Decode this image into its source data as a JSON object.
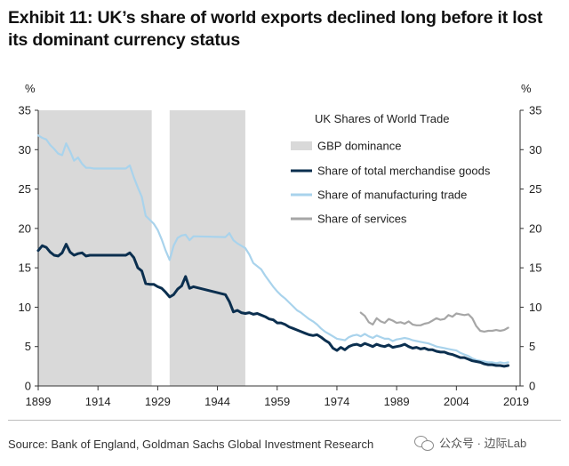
{
  "title": "Exhibit 11: UK’s share of world exports declined long before it lost its dominant currency status",
  "source": "Source: Bank of England, Goldman Sachs Global Investment Research",
  "watermark": "公众号 · 边际Lab",
  "watermark_icon": "wechat-icon",
  "chart_data": {
    "type": "line",
    "legend_title": "UK Shares of World Trade",
    "legend_placement": "top-right",
    "y_unit_left": "%",
    "y_unit_right": "%",
    "xlim": [
      1899,
      2020
    ],
    "ylim": [
      0,
      35
    ],
    "x_ticks": [
      "1899",
      "1914",
      "1929",
      "1944",
      "1959",
      "1974",
      "1989",
      "2004",
      "2019"
    ],
    "y_ticks": [
      "0",
      "5",
      "10",
      "15",
      "20",
      "25",
      "30",
      "35"
    ],
    "grid": false,
    "shaded_periods": {
      "name": "GBP dominance",
      "color": "#d9d9d9",
      "ranges": [
        [
          1899,
          1927.5
        ],
        [
          1932,
          1951
        ]
      ]
    },
    "series": [
      {
        "name": "Share of total merchandise goods",
        "color": "#0b2f4f",
        "width": 3,
        "x": [
          1899,
          1900,
          1901,
          1902,
          1903,
          1904,
          1905,
          1906,
          1907,
          1908,
          1909,
          1910,
          1911,
          1912,
          1913,
          1921,
          1922,
          1923,
          1924,
          1925,
          1926,
          1927,
          1928,
          1929,
          1930,
          1931,
          1932,
          1933,
          1934,
          1935,
          1936,
          1937,
          1938,
          1946,
          1947,
          1948,
          1949,
          1950,
          1951,
          1952,
          1953,
          1954,
          1955,
          1956,
          1957,
          1958,
          1959,
          1960,
          1961,
          1962,
          1963,
          1964,
          1965,
          1966,
          1967,
          1968,
          1969,
          1970,
          1971,
          1972,
          1973,
          1974,
          1975,
          1976,
          1977,
          1978,
          1979,
          1980,
          1981,
          1982,
          1983,
          1984,
          1985,
          1986,
          1987,
          1988,
          1989,
          1990,
          1991,
          1992,
          1993,
          1994,
          1995,
          1996,
          1997,
          1998,
          1999,
          2000,
          2001,
          2002,
          2003,
          2004,
          2005,
          2006,
          2007,
          2008,
          2009,
          2010,
          2011,
          2012,
          2013,
          2014,
          2015,
          2016,
          2017
        ],
        "y": [
          17.2,
          17.8,
          17.6,
          17.0,
          16.6,
          16.5,
          16.9,
          18.0,
          17.0,
          16.6,
          16.8,
          16.9,
          16.5,
          16.6,
          16.6,
          16.6,
          16.9,
          16.3,
          15.0,
          14.6,
          13.0,
          12.9,
          12.9,
          12.6,
          12.4,
          11.9,
          11.3,
          11.6,
          12.3,
          12.7,
          13.9,
          12.4,
          12.6,
          11.6,
          10.7,
          9.4,
          9.6,
          9.3,
          9.2,
          9.3,
          9.1,
          9.2,
          9.0,
          8.8,
          8.5,
          8.4,
          8.0,
          8.0,
          7.8,
          7.5,
          7.3,
          7.1,
          6.9,
          6.7,
          6.5,
          6.4,
          6.5,
          6.2,
          5.8,
          5.5,
          4.8,
          4.5,
          4.9,
          4.6,
          5.0,
          5.2,
          5.3,
          5.1,
          5.4,
          5.2,
          5.0,
          5.3,
          5.1,
          5.0,
          5.2,
          4.9,
          5.0,
          5.1,
          5.3,
          5.0,
          4.8,
          4.9,
          4.7,
          4.8,
          4.6,
          4.6,
          4.4,
          4.3,
          4.3,
          4.1,
          4.0,
          3.8,
          3.6,
          3.6,
          3.4,
          3.2,
          3.1,
          3.0,
          2.8,
          2.7,
          2.7,
          2.6,
          2.6,
          2.5,
          2.6
        ]
      },
      {
        "name": "Share of manufacturing trade",
        "color": "#a9d3ec",
        "width": 2.2,
        "x": [
          1899,
          1900,
          1901,
          1902,
          1903,
          1904,
          1905,
          1906,
          1907,
          1908,
          1909,
          1910,
          1911,
          1912,
          1913,
          1921,
          1922,
          1923,
          1924,
          1925,
          1926,
          1927,
          1928,
          1929,
          1930,
          1931,
          1932,
          1933,
          1934,
          1935,
          1936,
          1937,
          1938,
          1946,
          1947,
          1948,
          1949,
          1950,
          1951,
          1952,
          1953,
          1954,
          1955,
          1956,
          1957,
          1958,
          1959,
          1960,
          1961,
          1962,
          1963,
          1964,
          1965,
          1966,
          1967,
          1968,
          1969,
          1970,
          1971,
          1972,
          1973,
          1974,
          1975,
          1976,
          1977,
          1978,
          1979,
          1980,
          1981,
          1982,
          1983,
          1984,
          1985,
          1986,
          1987,
          1988,
          1989,
          1990,
          1991,
          1992,
          1993,
          1994,
          1995,
          1996,
          1997,
          1998,
          1999,
          2000,
          2001,
          2002,
          2003,
          2004,
          2005,
          2006,
          2007,
          2008,
          2009,
          2010,
          2011,
          2012,
          2013,
          2014,
          2015,
          2016,
          2017
        ],
        "y": [
          31.8,
          31.5,
          31.3,
          30.6,
          30.1,
          29.5,
          29.3,
          30.8,
          29.8,
          28.6,
          29.0,
          28.2,
          27.7,
          27.7,
          27.6,
          27.6,
          28.0,
          26.5,
          25.2,
          24.0,
          21.6,
          21.1,
          20.6,
          19.8,
          18.6,
          17.2,
          16.0,
          17.8,
          18.8,
          19.1,
          19.2,
          18.5,
          19.0,
          18.9,
          19.4,
          18.5,
          18.1,
          17.8,
          17.5,
          16.7,
          15.6,
          15.2,
          14.8,
          14.0,
          13.3,
          12.6,
          12.0,
          11.5,
          11.1,
          10.6,
          10.1,
          9.6,
          9.3,
          8.9,
          8.5,
          8.2,
          7.8,
          7.3,
          6.9,
          6.6,
          6.3,
          6.0,
          5.9,
          5.8,
          6.2,
          6.4,
          6.5,
          6.3,
          6.6,
          6.3,
          6.1,
          6.4,
          6.2,
          6.0,
          6.0,
          5.7,
          5.9,
          6.0,
          6.1,
          6.0,
          5.8,
          5.7,
          5.6,
          5.5,
          5.4,
          5.2,
          5.0,
          4.9,
          4.8,
          4.7,
          4.6,
          4.5,
          4.2,
          4.0,
          3.8,
          3.5,
          3.3,
          3.2,
          3.1,
          3.0,
          3.0,
          2.9,
          3.0,
          2.9,
          3.0
        ]
      },
      {
        "name": "Share of services",
        "color": "#a6a6a6",
        "width": 2.2,
        "x": [
          1980,
          1981,
          1982,
          1983,
          1984,
          1985,
          1986,
          1987,
          1988,
          1989,
          1990,
          1991,
          1992,
          1993,
          1994,
          1995,
          1996,
          1997,
          1998,
          1999,
          2000,
          2001,
          2002,
          2003,
          2004,
          2005,
          2006,
          2007,
          2008,
          2009,
          2010,
          2011,
          2012,
          2013,
          2014,
          2015,
          2016,
          2017
        ],
        "y": [
          9.3,
          8.9,
          8.1,
          7.8,
          8.6,
          8.2,
          8.0,
          8.5,
          8.3,
          8.0,
          8.1,
          7.9,
          8.2,
          7.8,
          7.7,
          7.7,
          7.9,
          8.0,
          8.3,
          8.6,
          8.4,
          8.5,
          9.0,
          8.8,
          9.2,
          9.1,
          9.0,
          9.1,
          8.6,
          7.6,
          7.0,
          6.9,
          7.0,
          7.0,
          7.1,
          7.0,
          7.1,
          7.4
        ]
      }
    ]
  }
}
